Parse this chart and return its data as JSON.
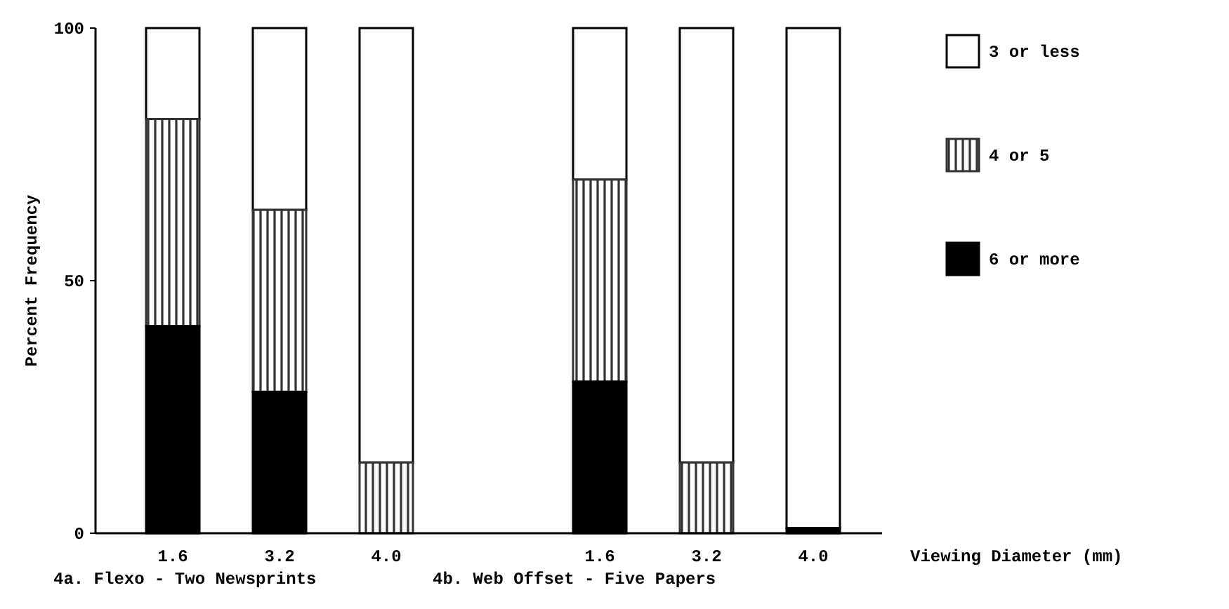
{
  "chart_data": {
    "type": "bar",
    "stacked": true,
    "ylabel": "Percent Frequency",
    "xlabel": "Viewing Diameter (mm)",
    "categories": [
      "1.6",
      "3.2",
      "4.0",
      null,
      "1.6",
      "3.2",
      "4.0"
    ],
    "ylim": [
      0,
      100
    ],
    "yticks": [
      0,
      50,
      100
    ],
    "legend": "right",
    "annotations": [
      "4a. Flexo - Two Newsprints",
      "4b. Web Offset - Five Papers"
    ],
    "series": [
      {
        "name": "6 or more",
        "color": "#000000",
        "values": [
          41,
          28,
          0,
          null,
          30,
          0,
          1
        ]
      },
      {
        "name": "4 or 5",
        "color": "#333333",
        "values": [
          41,
          36,
          14,
          null,
          40,
          14,
          0
        ]
      },
      {
        "name": "3 or less",
        "color": "#ffffff",
        "values": [
          18,
          36,
          86,
          null,
          30,
          86,
          99
        ]
      }
    ]
  }
}
